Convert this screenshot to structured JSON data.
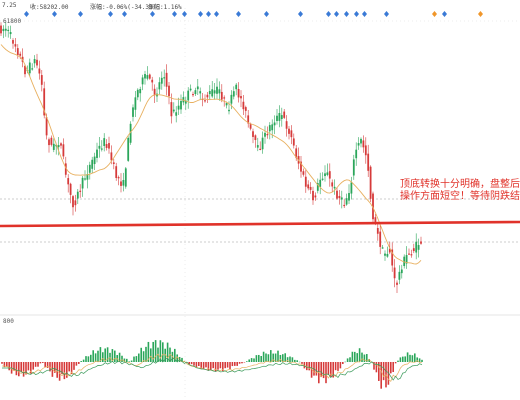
{
  "header": {
    "price_text": "7.25",
    "close_text": "收:58202.00",
    "change_text": "涨幅:-0.06%(-34.33)",
    "amplitude_text": "振幅:1.16%"
  },
  "annotation": {
    "line1": "顶底转换十分明确，盘整后",
    "line2": "操作方面短空！等待阴跌结"
  },
  "price_level_label": "61800",
  "macd_level_label": "800",
  "colors": {
    "candle_up": "#2aa65a",
    "candle_down": "#d63a3a",
    "ma_line": "#e8b060",
    "ma_line_2": "#3a9a5a",
    "red_support": "#e0322a",
    "dashed_guides": "#9a9a9a",
    "signal_blue": "#3a7ad6",
    "signal_orange": "#f0962a",
    "annotation_text": "#e0322a"
  },
  "chart_data": {
    "type": "candlestick",
    "y_axis_tick_labels": [
      "61800"
    ],
    "support_line_level": "horizontal red line near the consolidation lows",
    "price_path_shape": [
      "decline",
      "rebound",
      "high consolidation",
      "decline",
      "breakdown",
      "small rebound"
    ],
    "macd_histogram_shape": [
      "negative",
      "positive",
      "negative",
      "positive",
      "negative",
      "positive",
      "negative",
      "positive"
    ],
    "signal_markers": {
      "blue_count": 21,
      "orange_count": 2
    }
  }
}
